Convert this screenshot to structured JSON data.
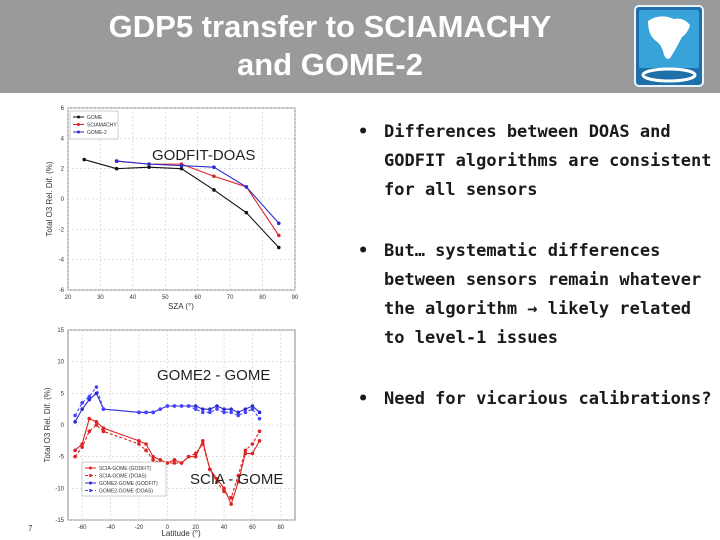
{
  "slide": {
    "title_line1": "GDP5 transfer to SCIAMACHY",
    "title_line2": "and GOME-2",
    "page_number": "7"
  },
  "labels": {
    "chart1_overlay": "GODFIT-DOAS",
    "chart2_overlay_top": "GOME2 - GOME",
    "chart2_overlay_bottom": "SCIA - GOME"
  },
  "bullets": [
    {
      "marker": "•",
      "text": "Differences between DOAS and GODFIT algorithms are consistent for all sensors"
    },
    {
      "marker": "•",
      "text": "But… systematic differences between sensors remain whatever the algorithm → likely related to level-1 issues"
    },
    {
      "marker": "•",
      "text": "Need for vicarious calibrations?"
    }
  ],
  "colors": {
    "gome": "#111111",
    "sciamachy": "#dd2222",
    "gome2": "#2a2ad0",
    "gome2_doas": "#4444ff"
  },
  "chart_data": [
    {
      "type": "line",
      "xlabel": "SZA (°)",
      "ylabel": "Total O3 Rel. Dif. (%)",
      "xlim": [
        20,
        90
      ],
      "ylim": [
        -6,
        6
      ],
      "xticks": [
        "20",
        "30",
        "40",
        "50",
        "60",
        "70",
        "80",
        "90"
      ],
      "yticks": [
        "6",
        "4",
        "2",
        "0",
        "-2",
        "-4",
        "-6"
      ],
      "legend_position": "top-left",
      "series": [
        {
          "name": "GOME",
          "x": [
            25,
            35,
            45,
            55,
            65,
            75,
            85
          ],
          "y": [
            2.6,
            2.0,
            2.1,
            2.0,
            0.6,
            -0.9,
            -3.2
          ]
        },
        {
          "name": "SCIAMACHY",
          "x": [
            35,
            45,
            55,
            65,
            75,
            85
          ],
          "y": [
            2.5,
            2.3,
            2.3,
            1.5,
            0.8,
            -2.4
          ]
        },
        {
          "name": "GOME-2",
          "x": [
            35,
            45,
            55,
            65,
            75,
            85
          ],
          "y": [
            2.5,
            2.3,
            2.2,
            2.1,
            0.8,
            -1.6
          ]
        }
      ]
    },
    {
      "type": "line",
      "xlabel": "Latitude (°)",
      "ylabel": "Total O3 Rel. Dif. (%)",
      "xlim": [
        -70,
        90
      ],
      "ylim": [
        -15,
        15
      ],
      "xticks": [
        "-60",
        "-40",
        "-20",
        "0",
        "20",
        "40",
        "60",
        "80"
      ],
      "yticks": [
        "15",
        "10",
        "5",
        "0",
        "-5",
        "-10",
        "-15"
      ],
      "legend_position": "bottom-left",
      "series": [
        {
          "name": "SCIA-GOME (GODFIT)",
          "x": [
            -65,
            -60,
            -55,
            -50,
            -45,
            -20,
            -15,
            -10,
            -5,
            0,
            5,
            10,
            15,
            20,
            25,
            30,
            35,
            40,
            45,
            50,
            55,
            60,
            65
          ],
          "y": [
            -4,
            -3,
            1,
            0.5,
            -0.5,
            -2.5,
            -3,
            -5,
            -5.5,
            -6,
            -5.5,
            -6,
            -5,
            -5,
            -2.5,
            -7,
            -8.5,
            -10,
            -12.5,
            -9,
            -4.5,
            -4.5,
            -2.5
          ]
        },
        {
          "name": "SCIA-GOME (DOAS)",
          "x": [
            -65,
            -60,
            -55,
            -50,
            -45,
            -20,
            -15,
            -10,
            -5,
            0,
            5,
            10,
            15,
            20,
            25,
            30,
            35,
            40,
            45,
            50,
            55,
            60,
            65
          ],
          "y": [
            -5,
            -3.5,
            -1,
            0,
            -1,
            -3,
            -4,
            -5.5,
            -6,
            -6,
            -6,
            -6,
            -5,
            -4.5,
            -3,
            -7,
            -9,
            -10.5,
            -11.5,
            -8,
            -4,
            -3,
            -1
          ]
        },
        {
          "name": "GOME2-GOME (GODFIT)",
          "x": [
            -65,
            -60,
            -55,
            -50,
            -45,
            -20,
            -15,
            -10,
            -5,
            0,
            5,
            10,
            15,
            20,
            25,
            30,
            35,
            40,
            45,
            50,
            55,
            60,
            65
          ],
          "y": [
            0.5,
            2.5,
            4,
            5,
            2.5,
            2,
            2,
            2,
            2.5,
            3,
            3,
            3,
            3,
            3,
            2.5,
            2.5,
            3,
            2.5,
            2.5,
            2,
            2.5,
            3,
            2
          ]
        },
        {
          "name": "GOME2-GOME (DOAS)",
          "x": [
            -65,
            -60,
            -55,
            -50,
            -45,
            -20,
            -15,
            -10,
            -5,
            0,
            5,
            10,
            15,
            20,
            25,
            30,
            35,
            40,
            45,
            50,
            55,
            60,
            65
          ],
          "y": [
            1.5,
            3.5,
            4.5,
            6,
            2.5,
            2,
            2,
            2,
            2.5,
            3,
            3,
            3,
            3,
            2.5,
            2,
            2,
            2.5,
            2,
            2,
            1.5,
            2,
            2.5,
            1
          ]
        }
      ]
    }
  ]
}
